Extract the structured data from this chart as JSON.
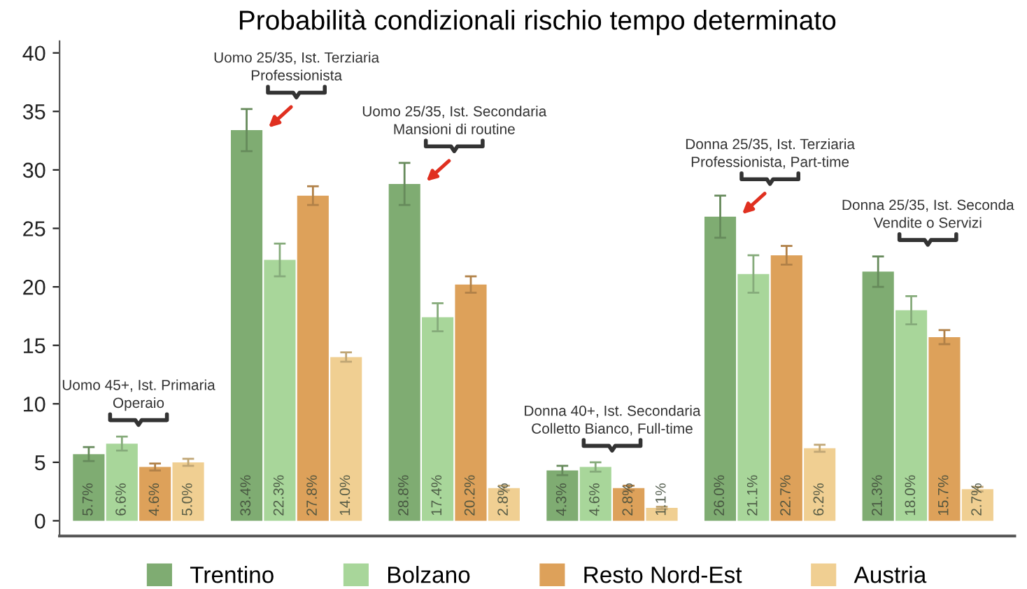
{
  "chart_data": {
    "type": "bar",
    "title": "Probabilità condizionali rischio tempo determinato",
    "categories": [
      null,
      null,
      null,
      null,
      null,
      null
    ],
    "series": [
      {
        "name": "Trentino",
        "color": "#7fac72",
        "values": [
          5.7,
          33.4,
          28.8,
          4.3,
          26.0,
          21.3
        ],
        "errors": [
          0.6,
          1.8,
          1.8,
          0.4,
          1.8,
          1.3
        ],
        "value_labels": [
          "5.7%",
          "33.4%",
          "28.8%",
          "4.3%",
          "26.0%",
          "21.3%"
        ]
      },
      {
        "name": "Bolzano",
        "color": "#a8d69a",
        "values": [
          6.6,
          22.3,
          17.4,
          4.6,
          21.1,
          18.0
        ],
        "errors": [
          0.6,
          1.4,
          1.2,
          0.4,
          1.6,
          1.2
        ],
        "value_labels": [
          "6.6%",
          "22.3%",
          "17.4%",
          "4.6%",
          "21.1%",
          "18.0%"
        ]
      },
      {
        "name": "Resto Nord-Est",
        "color": "#dda15a",
        "values": [
          4.6,
          27.8,
          20.2,
          2.8,
          22.7,
          15.7
        ],
        "errors": [
          0.3,
          0.8,
          0.7,
          0.2,
          0.8,
          0.6
        ],
        "value_labels": [
          "4.6%",
          "27.8%",
          "20.2%",
          "2.8%",
          "22.7%",
          "15.7%"
        ]
      },
      {
        "name": "Austria",
        "color": "#f0cf92",
        "values": [
          5.0,
          14.0,
          2.8,
          1.1,
          6.2,
          2.7
        ],
        "errors": [
          0.3,
          0.4,
          0.2,
          0.1,
          0.3,
          0.2
        ],
        "value_labels": [
          "5.0%",
          "14.0%",
          "2.8%",
          "1.1%",
          "6.2%",
          "2.7%"
        ]
      }
    ],
    "annotations": [
      "Uomo 45+, Ist. Primaria\nOperaio",
      "Uomo 25/35, Ist. Terziaria\nProfessionista",
      "Uomo 25/35, Ist. Secondaria\nMansioni di routine",
      "Donna 40+, Ist. Secondaria\nColletto Bianco, Full-time",
      "Donna 25/35, Ist. Terziaria\nProfessionista, Part-time",
      "Donna 25/35, Ist. Seconda\nVendite o Servizi"
    ],
    "ylim": [
      -1.3,
      41
    ],
    "yticks": [
      0,
      5,
      10,
      15,
      20,
      25,
      30,
      35,
      40
    ],
    "grid": false,
    "legend": "bottom"
  }
}
